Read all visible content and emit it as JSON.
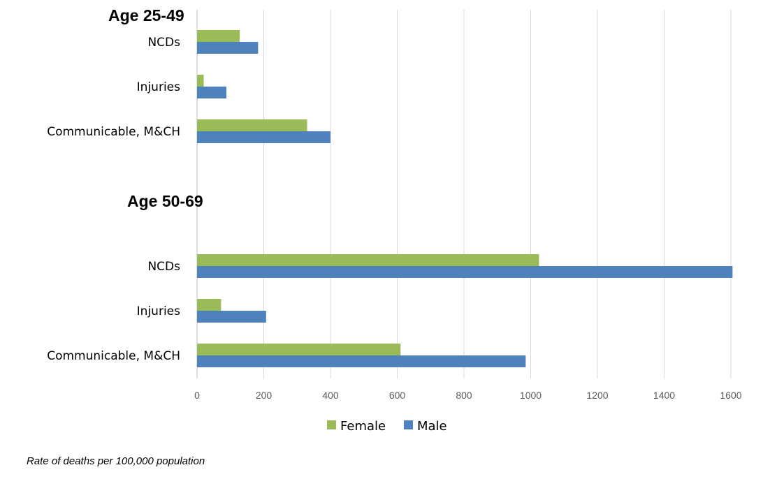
{
  "chart_data": {
    "type": "bar",
    "orientation": "horizontal",
    "xlim": [
      0,
      1600
    ],
    "xticks": [
      0,
      200,
      400,
      600,
      800,
      1000,
      1200,
      1400,
      1600
    ],
    "grid": true,
    "legend_position": "bottom",
    "series": [
      {
        "name": "Female",
        "color": "#9BBB59"
      },
      {
        "name": "Male",
        "color": "#4F81BD"
      }
    ],
    "groups": [
      {
        "title": "Age 25-49",
        "categories": [
          "NCDs",
          "Injuries",
          "Communicable, M&CH"
        ],
        "female": [
          128,
          20,
          330
        ],
        "male": [
          183,
          88,
          400
        ]
      },
      {
        "title": "Age 50-69",
        "categories": [
          "NCDs",
          "Injuries",
          "Communicable, M&CH"
        ],
        "female": [
          1025,
          72,
          610
        ],
        "male": [
          1605,
          207,
          985
        ]
      }
    ],
    "note": "Rate of deaths per 100,000 population"
  }
}
